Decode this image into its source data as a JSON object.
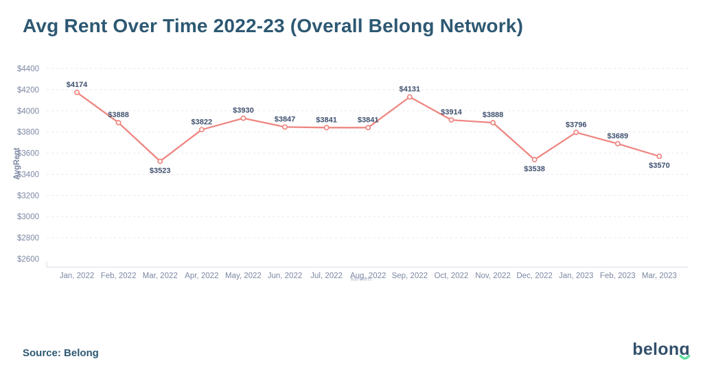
{
  "title": "Avg Rent Over Time 2022-23 (Overall Belong Network)",
  "source": "Source: Belong",
  "logo": {
    "text": "belong",
    "text_color": "#33506b",
    "smile_color": "#63dfa5"
  },
  "chart_data": {
    "type": "line",
    "title": "Avg Rent Over Time 2022-23 (Overall Belong Network)",
    "xlabel": "Month",
    "ylabel": "AvgRent",
    "categories": [
      "Jan, 2022",
      "Feb, 2022",
      "Mar, 2022",
      "Apr, 2022",
      "May, 2022",
      "Jun, 2022",
      "Jul, 2022",
      "Aug, 2022",
      "Sep, 2022",
      "Oct, 2022",
      "Nov, 2022",
      "Dec, 2022",
      "Jan, 2023",
      "Feb, 2023",
      "Mar, 2023"
    ],
    "values": [
      4174,
      3888,
      3523,
      3822,
      3930,
      3847,
      3841,
      3841,
      4131,
      3914,
      3888,
      3538,
      3796,
      3689,
      3570
    ],
    "point_labels": [
      "$4174",
      "$3888",
      "$3523",
      "$3822",
      "$3930",
      "$3847",
      "$3841",
      "$3841",
      "$4131",
      "$3914",
      "$3888",
      "$3538",
      "$3796",
      "$3689",
      "$3570"
    ],
    "label_positions": [
      "above",
      "above",
      "below",
      "above",
      "above",
      "above",
      "above",
      "above",
      "above",
      "above",
      "above",
      "below",
      "above",
      "above",
      "below"
    ],
    "y_ticks": [
      4400,
      4200,
      4000,
      3800,
      3600,
      3400,
      3200,
      3000,
      2800,
      2600
    ],
    "y_tick_labels": [
      "$4400",
      "$4200",
      "$4000",
      "$3800",
      "$3600",
      "$3400",
      "$3200",
      "$3000",
      "$2800",
      "$2600"
    ],
    "ylim": [
      2600,
      4400
    ],
    "grid": "dashed horizontal",
    "legend": "none",
    "line_color": "#ee8681",
    "marker_fill": "#ffffff",
    "value_label_color": "#3e4f6e",
    "tick_label_color": "#7c87a2",
    "grid_color": "#e5e7ef",
    "axis_line_color": "#d8dbe4"
  }
}
